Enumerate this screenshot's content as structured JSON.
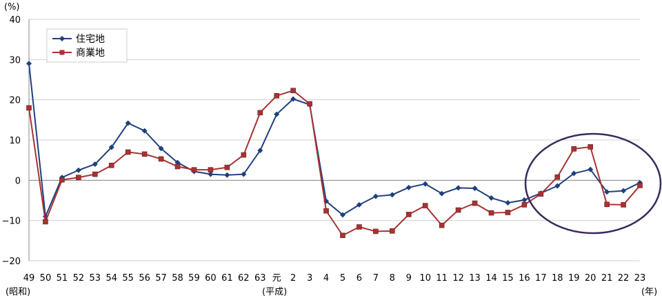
{
  "chart_data": {
    "type": "line",
    "title": "",
    "ylabel": "(%)",
    "ylim": [
      -20,
      40
    ],
    "yticks": [
      40,
      30,
      20,
      10,
      0,
      -10,
      -20
    ],
    "categories": [
      "49",
      "50",
      "51",
      "52",
      "53",
      "54",
      "55",
      "56",
      "57",
      "58",
      "59",
      "60",
      "61",
      "62",
      "63",
      "元",
      "2",
      "3",
      "4",
      "5",
      "6",
      "7",
      "8",
      "9",
      "10",
      "11",
      "12",
      "13",
      "14",
      "15",
      "16",
      "17",
      "18",
      "19",
      "20",
      "21",
      "22",
      "23"
    ],
    "era_label_start": "(昭和)",
    "era_label_heisei": "(平成)",
    "x_unit_label": "(年)",
    "grid": true,
    "legend": "top-left",
    "series": [
      {
        "name": "住宅地",
        "color": "#1f3f7f",
        "marker": "diamond",
        "values": [
          29.0,
          -9.0,
          0.7,
          2.5,
          4.0,
          8.2,
          14.2,
          12.3,
          7.9,
          4.4,
          2.2,
          1.5,
          1.3,
          1.5,
          7.4,
          16.4,
          20.2,
          18.8,
          -5.2,
          -8.6,
          -6.1,
          -4.0,
          -3.6,
          -1.8,
          -0.9,
          -3.3,
          -1.9,
          -2.0,
          -4.4,
          -5.6,
          -4.9,
          -3.2,
          -1.4,
          1.7,
          2.7,
          -2.9,
          -2.6,
          -0.6
        ]
      },
      {
        "name": "商業地",
        "color": "#a83232",
        "marker": "square",
        "values": [
          18.0,
          -10.3,
          0.1,
          0.7,
          1.5,
          3.7,
          7.0,
          6.5,
          5.3,
          3.4,
          2.6,
          2.6,
          3.2,
          6.3,
          16.8,
          21.0,
          22.3,
          19.0,
          -7.6,
          -13.7,
          -11.6,
          -12.7,
          -12.6,
          -8.5,
          -6.3,
          -11.2,
          -7.4,
          -5.7,
          -8.1,
          -8.0,
          -6.1,
          -3.4,
          0.8,
          7.8,
          8.3,
          -6.0,
          -6.1,
          -1.3
        ]
      }
    ]
  }
}
